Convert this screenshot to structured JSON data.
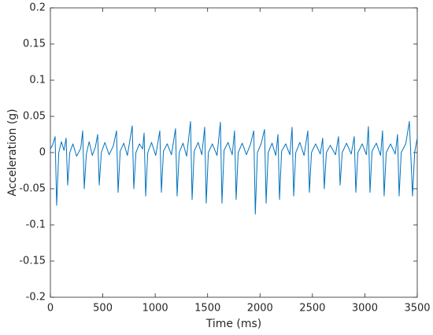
{
  "chart_data": {
    "type": "line",
    "xlabel": "Time (ms)",
    "ylabel": "Acceleration (g)",
    "color": "#0072bd",
    "xlim": [
      0,
      3500
    ],
    "xticks": [
      0,
      500,
      1000,
      1500,
      2000,
      2500,
      3000,
      3500
    ],
    "ylim": [
      -0.2,
      0.2
    ],
    "yticks": [
      0.2,
      0.15,
      0.1,
      0.05,
      0,
      -0.05,
      -0.1,
      -0.15,
      -0.2
    ],
    "x": [
      0,
      20,
      45,
      60,
      80,
      105,
      130,
      150,
      165,
      185,
      215,
      250,
      290,
      308,
      323,
      343,
      370,
      400,
      430,
      451,
      466,
      486,
      520,
      560,
      600,
      631,
      646,
      666,
      700,
      735,
      781,
      796,
      816,
      850,
      880,
      894,
      909,
      929,
      965,
      1005,
      1044,
      1059,
      1079,
      1115,
      1155,
      1194,
      1209,
      1229,
      1265,
      1300,
      1337,
      1352,
      1372,
      1410,
      1445,
      1472,
      1487,
      1507,
      1545,
      1590,
      1622,
      1637,
      1657,
      1695,
      1735,
      1757,
      1772,
      1792,
      1830,
      1870,
      1910,
      1940,
      1955,
      1975,
      2010,
      2043,
      2058,
      2078,
      2115,
      2150,
      2171,
      2186,
      2206,
      2245,
      2285,
      2306,
      2321,
      2341,
      2380,
      2420,
      2456,
      2471,
      2491,
      2530,
      2575,
      2598,
      2613,
      2633,
      2670,
      2720,
      2749,
      2764,
      2784,
      2825,
      2870,
      2899,
      2914,
      2934,
      2975,
      3015,
      3034,
      3049,
      3069,
      3110,
      3150,
      3169,
      3184,
      3204,
      3245,
      3290,
      3312,
      3327,
      3347,
      3390,
      3425,
      3455,
      3475,
      3500
    ],
    "values": [
      0.005,
      0.01,
      0.022,
      -0.073,
      0.0,
      0.015,
      0.003,
      0.02,
      -0.045,
      0.0,
      0.012,
      -0.005,
      0.006,
      0.03,
      -0.05,
      -0.002,
      0.015,
      -0.004,
      0.008,
      0.025,
      -0.045,
      0.0,
      0.014,
      -0.003,
      0.009,
      0.03,
      -0.055,
      0.002,
      0.013,
      -0.004,
      0.037,
      -0.05,
      0.0,
      0.012,
      0.005,
      0.027,
      -0.06,
      0.0,
      0.014,
      -0.004,
      0.03,
      -0.055,
      0.002,
      0.012,
      -0.003,
      0.033,
      -0.06,
      0.0,
      0.013,
      -0.005,
      0.043,
      -0.065,
      0.002,
      0.014,
      -0.003,
      0.035,
      -0.07,
      0.0,
      0.012,
      -0.004,
      0.042,
      -0.07,
      0.003,
      0.014,
      -0.003,
      0.03,
      -0.065,
      0.0,
      0.013,
      -0.003,
      0.012,
      0.03,
      -0.085,
      0.0,
      0.012,
      0.032,
      -0.07,
      0.0,
      0.013,
      -0.004,
      0.025,
      -0.065,
      0.002,
      0.012,
      -0.003,
      0.035,
      -0.06,
      0.0,
      0.014,
      -0.004,
      0.03,
      -0.055,
      0.0,
      0.012,
      -0.002,
      0.02,
      -0.05,
      0.0,
      0.01,
      -0.003,
      0.022,
      -0.045,
      0.0,
      0.013,
      -0.002,
      0.022,
      -0.055,
      0.0,
      0.012,
      -0.003,
      0.036,
      -0.055,
      0.002,
      0.013,
      -0.004,
      0.03,
      -0.06,
      0.0,
      0.012,
      -0.002,
      0.025,
      -0.06,
      0.0,
      0.012,
      0.043,
      -0.06,
      0.0,
      0.02
    ]
  }
}
